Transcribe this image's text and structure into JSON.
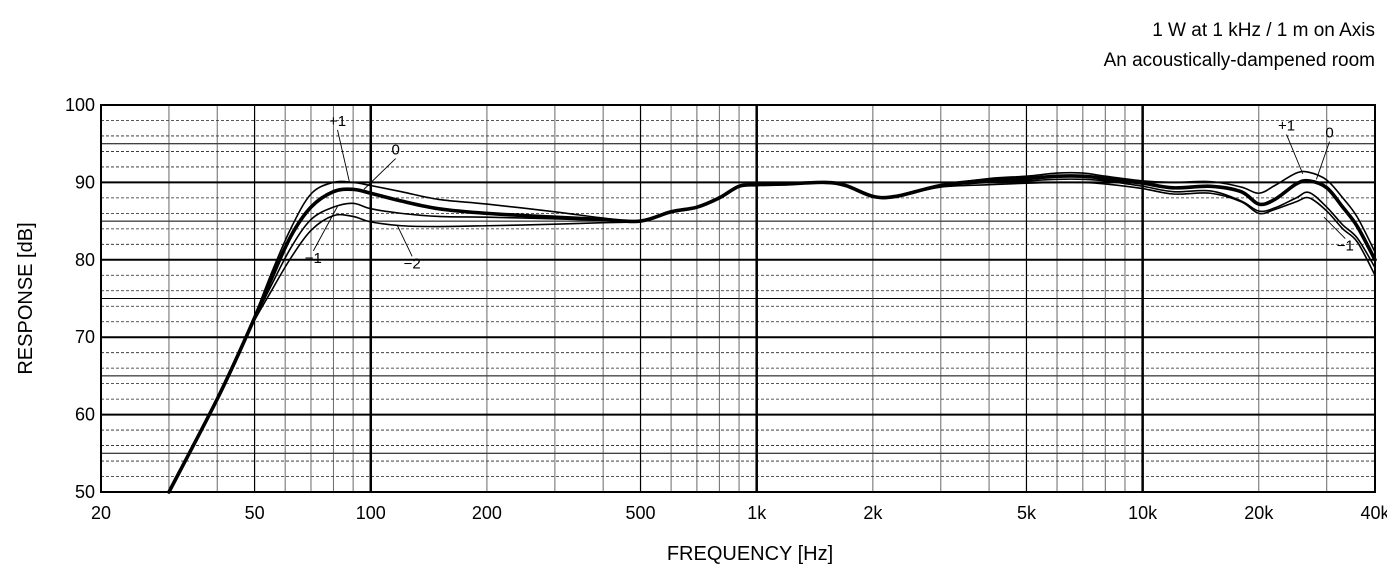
{
  "notes": {
    "line1": "1 W at 1 kHz / 1 m on Axis",
    "line2": "An acoustically-dampened room"
  },
  "chart_data": {
    "type": "line",
    "xscale": "log",
    "xlabel": "FREQUENCY [Hz]",
    "ylabel": "RESPONSE [dB]",
    "xlim": [
      20,
      40000
    ],
    "ylim": [
      50,
      100
    ],
    "grid": true,
    "x_ticks": [
      {
        "value": 20,
        "label": "20"
      },
      {
        "value": 50,
        "label": "50"
      },
      {
        "value": 100,
        "label": "100"
      },
      {
        "value": 200,
        "label": "200"
      },
      {
        "value": 500,
        "label": "500"
      },
      {
        "value": 1000,
        "label": "1k"
      },
      {
        "value": 2000,
        "label": "2k"
      },
      {
        "value": 5000,
        "label": "5k"
      },
      {
        "value": 10000,
        "label": "10k"
      },
      {
        "value": 20000,
        "label": "20k"
      },
      {
        "value": 40000,
        "label": "40k"
      }
    ],
    "y_ticks": [
      50,
      60,
      70,
      80,
      90,
      100
    ],
    "annotations": [
      "+1",
      "0",
      "−1",
      "−2",
      "+1",
      "0",
      "−1"
    ],
    "series": [
      {
        "name": "+1",
        "weight": "thin",
        "x": [
          30,
          40,
          48,
          55,
          62,
          70,
          80,
          90,
          100,
          120,
          150,
          200,
          300,
          400,
          500,
          600,
          700,
          800,
          900,
          1000,
          1200,
          1500,
          1700,
          2000,
          2300,
          3000,
          4000,
          5000,
          6000,
          7000,
          8000,
          10000,
          12000,
          15000,
          18000,
          20000,
          22000,
          25000,
          27000,
          30000,
          33000,
          36000,
          40000
        ],
        "y": [
          50,
          62,
          70.5,
          78,
          84,
          88.5,
          90,
          90,
          89.6,
          88.8,
          87.8,
          87.2,
          86.2,
          85.4,
          85,
          86.2,
          86.8,
          88,
          89.5,
          89.7,
          89.8,
          90,
          89.6,
          88.2,
          88.2,
          89.6,
          90.5,
          90.8,
          91.2,
          91.2,
          90.8,
          90.2,
          90,
          90.1,
          89.4,
          88.6,
          89.6,
          91.2,
          91.3,
          90.3,
          88,
          85.5,
          81
        ]
      },
      {
        "name": "0",
        "weight": "thick",
        "x": [
          30,
          40,
          48,
          55,
          62,
          70,
          80,
          90,
          100,
          120,
          150,
          200,
          300,
          400,
          500,
          600,
          700,
          800,
          900,
          1000,
          1200,
          1500,
          1700,
          2000,
          2300,
          3000,
          4000,
          5000,
          6000,
          7000,
          8000,
          10000,
          12000,
          15000,
          18000,
          20000,
          22000,
          25000,
          27000,
          30000,
          33000,
          36000,
          40000
        ],
        "y": [
          50,
          62,
          70.5,
          77.3,
          83,
          86.8,
          88.8,
          89.1,
          88.6,
          87.6,
          86.6,
          86,
          85.5,
          85.2,
          85,
          86.2,
          86.8,
          88,
          89.5,
          89.7,
          89.8,
          90,
          89.6,
          88.2,
          88.2,
          89.6,
          90.3,
          90.5,
          90.8,
          90.8,
          90.5,
          89.9,
          89.3,
          89.5,
          88.8,
          87.2,
          87.8,
          89.8,
          90.2,
          89.3,
          86.8,
          84.3,
          80
        ]
      },
      {
        "name": "−1",
        "weight": "thin",
        "x": [
          30,
          40,
          48,
          55,
          62,
          70,
          80,
          90,
          100,
          120,
          150,
          200,
          300,
          400,
          500,
          600,
          700,
          800,
          900,
          1000,
          1200,
          1500,
          1700,
          2000,
          2300,
          3000,
          4000,
          5000,
          6000,
          7000,
          8000,
          10000,
          12000,
          15000,
          18000,
          20000,
          22000,
          25000,
          27000,
          30000,
          33000,
          36000,
          40000
        ],
        "y": [
          50,
          62,
          70.5,
          76.5,
          81.5,
          85.2,
          86.8,
          87.3,
          86.6,
          86,
          85.6,
          85.5,
          85.3,
          85.1,
          85,
          86.2,
          86.8,
          88,
          89.5,
          89.7,
          89.8,
          90,
          89.6,
          88.2,
          88.2,
          89.5,
          90,
          90.2,
          90.4,
          90.4,
          90.2,
          89.5,
          88.8,
          88.9,
          87.6,
          86.3,
          86.7,
          88,
          88.7,
          86.8,
          84.5,
          82.8,
          79
        ]
      },
      {
        "name": "−2",
        "weight": "thin",
        "x": [
          30,
          40,
          48,
          55,
          62,
          70,
          80,
          90,
          100,
          120,
          150,
          200,
          300,
          400,
          500,
          600,
          700,
          800,
          900,
          1000,
          1200,
          1500,
          1700,
          2000,
          2300,
          3000,
          4000,
          5000,
          6000,
          7000,
          8000,
          10000,
          12000,
          15000,
          18000,
          20000,
          22000,
          25000,
          27000,
          30000,
          33000,
          36000,
          40000
        ],
        "y": [
          50,
          62,
          70.5,
          75.8,
          80.2,
          83.8,
          85.7,
          85.6,
          84.9,
          84.4,
          84.3,
          84.4,
          84.6,
          84.8,
          85,
          86.2,
          86.8,
          88,
          89.5,
          89.7,
          89.8,
          90,
          89.6,
          88.2,
          88.2,
          89.4,
          89.7,
          89.9,
          90,
          90,
          89.8,
          89.2,
          88.5,
          88.6,
          87.5,
          86,
          86.5,
          87.5,
          88,
          86.3,
          84,
          82.3,
          78
        ]
      }
    ]
  }
}
